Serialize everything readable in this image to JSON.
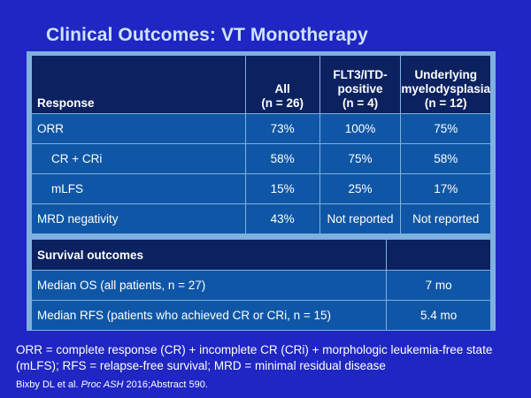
{
  "title": "Clinical Outcomes: VT Monotherapy",
  "response_table": {
    "headers": [
      {
        "line1": "Response",
        "line2": "",
        "line3": ""
      },
      {
        "line1": "All",
        "line2": "(n = 26)"
      },
      {
        "line1": "FLT3/ITD-",
        "line2": "positive",
        "line3": "(n = 4)"
      },
      {
        "line1": "Underlying",
        "line2": "myelodysplasia",
        "line3": "(n = 12)"
      }
    ],
    "rows": [
      {
        "label": "ORR",
        "all": "73%",
        "flt3": "100%",
        "myelo": "75%"
      },
      {
        "label": "CR + CRi",
        "all": "58%",
        "flt3": "75%",
        "myelo": "58%"
      },
      {
        "label": "mLFS",
        "all": "15%",
        "flt3": "25%",
        "myelo": "17%"
      },
      {
        "label": "MRD negativity",
        "all": "43%",
        "flt3": "Not reported",
        "myelo": "Not reported"
      }
    ]
  },
  "survival_table": {
    "header": "Survival outcomes",
    "header_value": "",
    "rows": [
      {
        "label": "Median OS (all patients, n = 27)",
        "value": "7 mo"
      },
      {
        "label": "Median RFS (patients who achieved CR or CRi, n = 15)",
        "value": "5.4 mo"
      }
    ]
  },
  "footnote": "ORR = complete response (CR) + incomplete CR (CRi) + morphologic leukemia-free state (mLFS); RFS = relapse-free survival; MRD = minimal residual disease",
  "citation": {
    "authors": "Bixby DL et al. ",
    "journal": "Proc ASH",
    "rest": " 2016;Abstract 590."
  }
}
